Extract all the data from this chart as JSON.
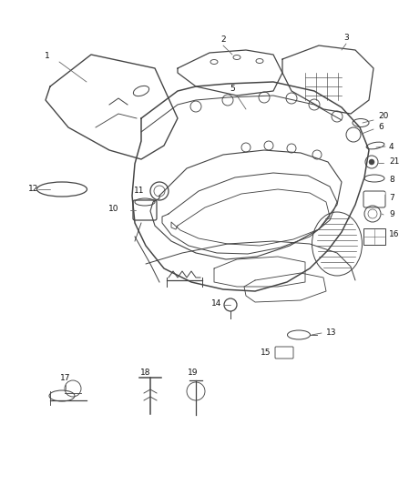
{
  "bg_color": "#ffffff",
  "fig_width": 4.38,
  "fig_height": 5.33,
  "dpi": 100,
  "line_color": "#444444",
  "text_color": "#111111",
  "label_fontsize": 6.5,
  "lw": 0.9
}
